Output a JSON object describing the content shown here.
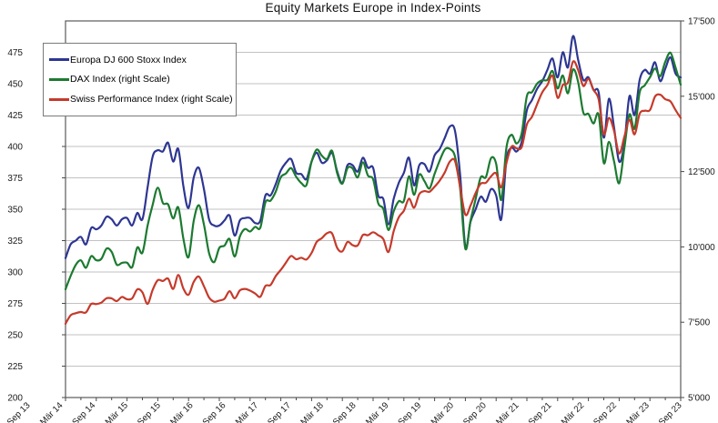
{
  "title": "Equity Markets Europe in Index-Points",
  "legend": {
    "items": [
      {
        "label": "Europa DJ 600 Stoxx Index",
        "color": "#2d3692"
      },
      {
        "label": "DAX Index (right Scale)",
        "color": "#1c7a30"
      },
      {
        "label": "Swiss Performance Index (right Scale)",
        "color": "#c53a2b"
      }
    ]
  },
  "chart_data": {
    "type": "line",
    "title": "Equity Markets Europe in Index-Points",
    "grid": "horizontal",
    "legend_position": "top-left-inside",
    "x_tick_labels": [
      "Sep 13",
      "Mär 14",
      "Sep 14",
      "Mär 15",
      "Sep 15",
      "Mär 16",
      "Sep 16",
      "Mär 17",
      "Sep 17",
      "Mär 18",
      "Sep 18",
      "Mär 19",
      "Sep 19",
      "Mär 20",
      "Sep 20",
      "Mär 21",
      "Sep 21",
      "Mär 22",
      "Sep 22",
      "Mär 23",
      "Sep 23"
    ],
    "points_per_tick": 6,
    "left_axis": {
      "min": 200,
      "max": 500,
      "tick_step": 25,
      "ticks": [
        200,
        225,
        250,
        275,
        300,
        325,
        350,
        375,
        400,
        425,
        450,
        475
      ],
      "tick_labels": [
        "200",
        "225",
        "250",
        "275",
        "300",
        "325",
        "350",
        "375",
        "400",
        "425",
        "450",
        "475"
      ]
    },
    "right_axis": {
      "min": 5000,
      "max": 17500,
      "tick_step": 2500,
      "ticks": [
        5000,
        7500,
        10000,
        12500,
        15000,
        17500
      ],
      "tick_labels": [
        "5'000",
        "7'500",
        "10'000",
        "12'500",
        "15'000",
        "17'500"
      ]
    },
    "series": [
      {
        "name": "Europa DJ 600 Stoxx Index",
        "axis": "left",
        "color": "#2d3692",
        "values": [
          311,
          322,
          325,
          328,
          322,
          335,
          334,
          337,
          344,
          342,
          337,
          342,
          343,
          337,
          347,
          342,
          367,
          392,
          397,
          396,
          403,
          388,
          398,
          368,
          351,
          375,
          383,
          366,
          342,
          337,
          337,
          341,
          345,
          329,
          341,
          343,
          343,
          339,
          341,
          361,
          361,
          370,
          381,
          387,
          390,
          379,
          378,
          374,
          388,
          395,
          387,
          389,
          395,
          380,
          371,
          385,
          385,
          380,
          391,
          383,
          383,
          361,
          358,
          338,
          358,
          371,
          379,
          391,
          369,
          385,
          386,
          380,
          393,
          398,
          407,
          416,
          412,
          376,
          320,
          340,
          350,
          360,
          356,
          366,
          361,
          342,
          389,
          399,
          396,
          404,
          429,
          437,
          446,
          452,
          461,
          470,
          455,
          475,
          463,
          488,
          469,
          453,
          455,
          445,
          443,
          407,
          438,
          415,
          388,
          402,
          440,
          425,
          453,
          461,
          458,
          467,
          452,
          462,
          471,
          458,
          455
        ]
      },
      {
        "name": "DAX Index (right Scale)",
        "axis": "right",
        "color": "#1c7a30",
        "values": [
          8594,
          9034,
          9405,
          9552,
          9306,
          9692,
          9556,
          9603,
          9943,
          9833,
          9407,
          9470,
          9474,
          9327,
          9981,
          9806,
          10694,
          11402,
          11966,
          11454,
          11414,
          10945,
          11309,
          10259,
          9660,
          10850,
          11382,
          10743,
          9798,
          9495,
          9966,
          10039,
          10263,
          9680,
          10337,
          10593,
          10511,
          10665,
          10640,
          11481,
          11535,
          11834,
          12313,
          12438,
          12615,
          12325,
          12118,
          12056,
          12829,
          13230,
          13024,
          12918,
          13189,
          12436,
          12097,
          12612,
          12604,
          12306,
          12806,
          12364,
          12247,
          11448,
          11257,
          10559,
          11173,
          11515,
          11526,
          12344,
          11727,
          12399,
          12189,
          11939,
          12428,
          12867,
          13236,
          13249,
          12982,
          11890,
          9936,
          10862,
          11587,
          12311,
          12313,
          12945,
          12761,
          11556,
          13291,
          13719,
          13433,
          13786,
          15008,
          15136,
          15421,
          15531,
          15544,
          15835,
          15261,
          15689,
          15100,
          15885,
          15471,
          14461,
          14415,
          14098,
          14388,
          12784,
          13484,
          12835,
          12114,
          13254,
          14397,
          13924,
          15128,
          15365,
          15629,
          15922,
          15664,
          16148,
          16447,
          15947,
          15387
        ]
      },
      {
        "name": "Swiss Performance Index (right Scale)",
        "axis": "right",
        "color": "#c53a2b",
        "values": [
          7450,
          7730,
          7800,
          7838,
          7825,
          8106,
          8100,
          8150,
          8294,
          8290,
          8200,
          8339,
          8261,
          8291,
          8590,
          8490,
          8107,
          8576,
          8896,
          8867,
          8947,
          8605,
          9070,
          8612,
          8413,
          8834,
          9015,
          8694,
          8322,
          8180,
          8220,
          8277,
          8530,
          8292,
          8553,
          8605,
          8548,
          8450,
          8345,
          8704,
          8735,
          9030,
          9238,
          9477,
          9697,
          9590,
          9640,
          9580,
          9800,
          10165,
          10290,
          10452,
          10446,
          9960,
          9852,
          10162,
          10056,
          10050,
          10393,
          10387,
          10487,
          10387,
          10258,
          9830,
          10510,
          10980,
          11200,
          11600,
          11300,
          11750,
          11850,
          11830,
          12000,
          12200,
          12480,
          12838,
          12843,
          11960,
          11070,
          11370,
          11790,
          12100,
          12130,
          12340,
          12440,
          11980,
          12780,
          13328,
          13270,
          13320,
          14070,
          14320,
          14740,
          15130,
          15370,
          15680,
          14950,
          15370,
          15460,
          16150,
          15870,
          15340,
          15580,
          15210,
          14890,
          13740,
          14280,
          13850,
          13100,
          13650,
          14220,
          13735,
          14420,
          14520,
          14540,
          14990,
          15050,
          14900,
          14830,
          14540,
          14280
        ]
      }
    ]
  },
  "colors": {
    "gridline": "#c2c2c2",
    "plot_border": "#5a5a5a",
    "tick": "#4a4a4a",
    "label_text": "#1a1a1a"
  }
}
